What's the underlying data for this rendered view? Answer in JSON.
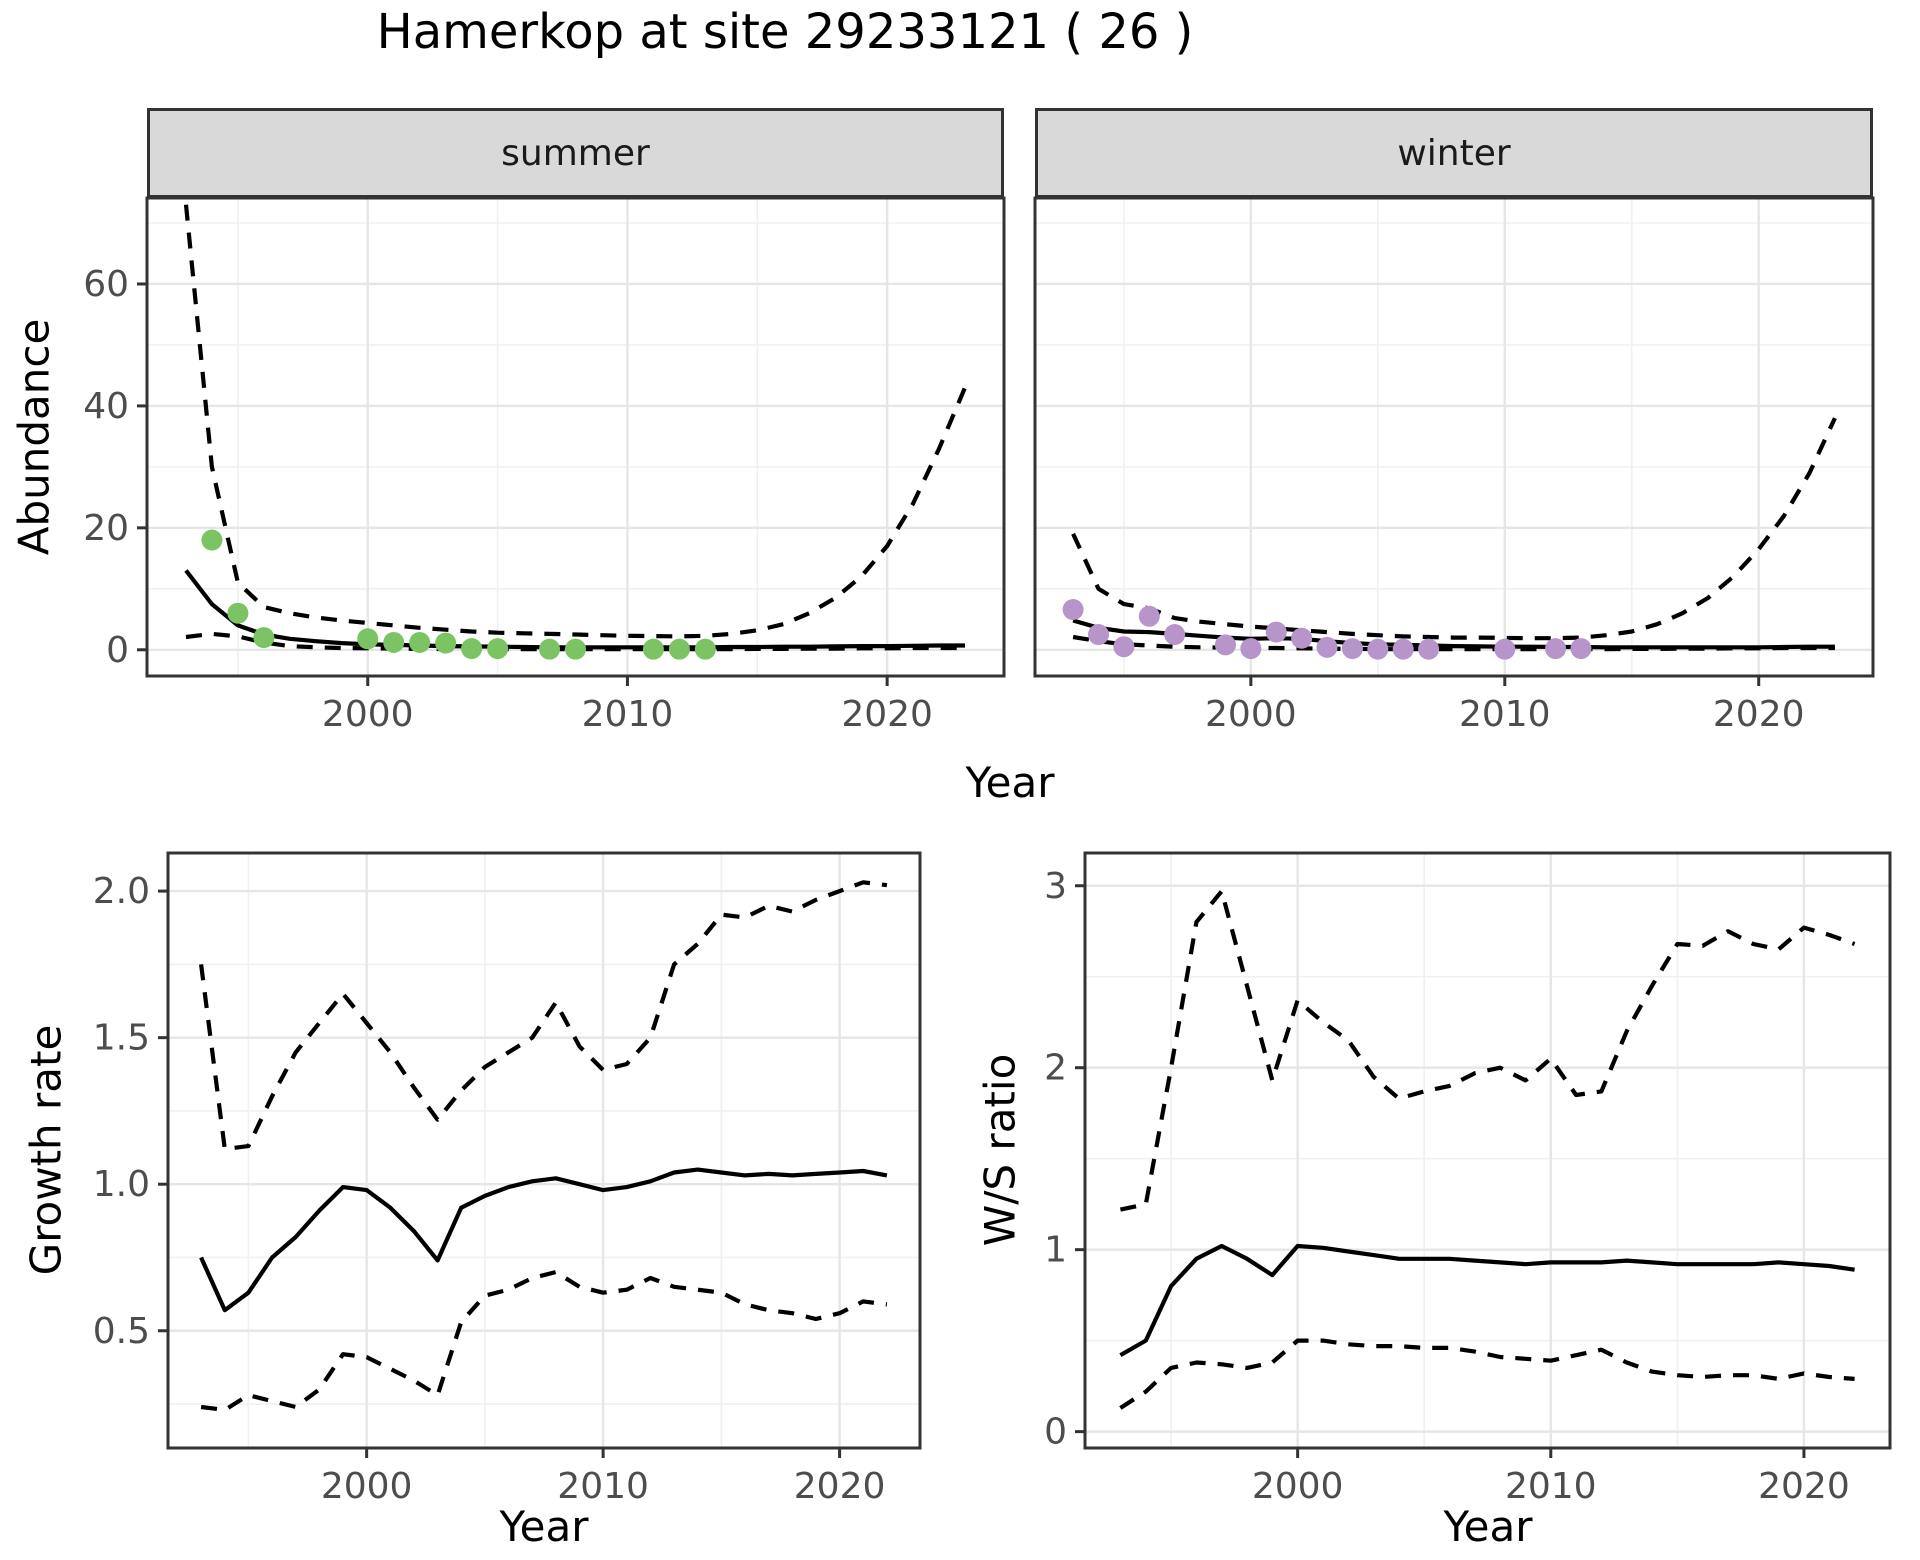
{
  "title": "Hamerkop at site 29233121 ( 26 )",
  "colors": {
    "summer_points": "#7cc364",
    "winter_points": "#b794c9",
    "line": "#000000",
    "grid_major": "#e6e6e6",
    "grid_minor": "#f0f0f0",
    "panel_border": "#333333",
    "strip_fill": "#d9d9d9",
    "tick_label": "#4d4d4d",
    "background": "#ffffff"
  },
  "chart_data": [
    {
      "id": "abundance-summer",
      "type": "line",
      "facet": "summer",
      "ylabel": "Abundance",
      "xlabel": "Year",
      "xlim": [
        1991.5,
        2024.5
      ],
      "ylim": [
        -4.3,
        74.1
      ],
      "xticks": [
        2000,
        2010,
        2020
      ],
      "xtick_labels": [
        "2000",
        "2010",
        "2020"
      ],
      "yticks": [
        0,
        20,
        40,
        60
      ],
      "ytick_labels": [
        "0",
        "20",
        "40",
        "60"
      ],
      "grid": true,
      "legend": "none",
      "series": [
        {
          "name": "median",
          "style": "solid",
          "x": [
            1993,
            1994,
            1995,
            1996,
            1997,
            1998,
            1999,
            2000,
            2001,
            2002,
            2003,
            2004,
            2005,
            2006,
            2007,
            2008,
            2009,
            2010,
            2011,
            2012,
            2013,
            2014,
            2015,
            2016,
            2017,
            2018,
            2019,
            2020,
            2021,
            2022,
            2023
          ],
          "y": [
            13,
            7.5,
            4,
            2.5,
            1.8,
            1.4,
            1.1,
            0.9,
            0.8,
            0.7,
            0.6,
            0.55,
            0.5,
            0.45,
            0.4,
            0.4,
            0.4,
            0.4,
            0.4,
            0.4,
            0.4,
            0.45,
            0.45,
            0.5,
            0.5,
            0.55,
            0.6,
            0.6,
            0.65,
            0.7,
            0.7
          ]
        },
        {
          "name": "lower-ci",
          "style": "dashed",
          "x": [
            1993,
            1994,
            1995,
            1996,
            1997,
            1998,
            1999,
            2000,
            2001,
            2002,
            2003,
            2004,
            2005,
            2006,
            2007,
            2008,
            2009,
            2010,
            2011,
            2012,
            2013,
            2014,
            2015,
            2016,
            2017,
            2018,
            2019,
            2020,
            2021,
            2022,
            2023
          ],
          "y": [
            2.1,
            2.6,
            2.2,
            1.2,
            0.6,
            0.4,
            0.3,
            0.25,
            0.2,
            0.15,
            0.12,
            0.1,
            0.1,
            0.1,
            0.1,
            0.1,
            0.1,
            0.1,
            0.1,
            0.1,
            0.1,
            0.12,
            0.15,
            0.15,
            0.2,
            0.2,
            0.25,
            0.25,
            0.3,
            0.3,
            0.3
          ]
        },
        {
          "name": "upper-ci",
          "style": "dashed",
          "x": [
            1993,
            1994,
            1995,
            1996,
            1997,
            1998,
            1999,
            2000,
            2001,
            2002,
            2003,
            2004,
            2005,
            2006,
            2007,
            2008,
            2009,
            2010,
            2011,
            2012,
            2013,
            2014,
            2015,
            2016,
            2017,
            2018,
            2019,
            2020,
            2021,
            2022,
            2023
          ],
          "y": [
            73,
            30,
            11,
            7,
            6,
            5.3,
            4.8,
            4.4,
            4,
            3.6,
            3.3,
            3,
            2.8,
            2.7,
            2.6,
            2.5,
            2.4,
            2.3,
            2.25,
            2.2,
            2.3,
            2.6,
            3.2,
            4.2,
            6,
            8.5,
            12,
            17,
            24,
            33,
            43
          ]
        }
      ],
      "points": {
        "name": "observed-summer",
        "color": "#7cc364",
        "x": [
          1994,
          1995,
          1996,
          2000,
          2001,
          2002,
          2003,
          2004,
          2005,
          2007,
          2008,
          2011,
          2012,
          2013
        ],
        "y": [
          18,
          6,
          2,
          1.8,
          1.2,
          1.2,
          1.1,
          0.2,
          0.2,
          0.1,
          0.1,
          0.1,
          0.1,
          0.1
        ]
      }
    },
    {
      "id": "abundance-winter",
      "type": "line",
      "facet": "winter",
      "ylabel": "Abundance",
      "xlabel": "Year",
      "xlim": [
        1991.5,
        2024.5
      ],
      "ylim": [
        -4.3,
        74.1
      ],
      "xticks": [
        2000,
        2010,
        2020
      ],
      "xtick_labels": [
        "2000",
        "2010",
        "2020"
      ],
      "yticks": [
        0,
        20,
        40,
        60
      ],
      "ytick_labels": [
        "0",
        "20",
        "40",
        "60"
      ],
      "grid": true,
      "legend": "none",
      "series": [
        {
          "name": "median",
          "style": "solid",
          "x": [
            1993,
            1994,
            1995,
            1996,
            1997,
            1998,
            1999,
            2000,
            2001,
            2002,
            2003,
            2004,
            2005,
            2006,
            2007,
            2008,
            2009,
            2010,
            2011,
            2012,
            2013,
            2014,
            2015,
            2016,
            2017,
            2018,
            2019,
            2020,
            2021,
            2022,
            2023
          ],
          "y": [
            4.8,
            3.6,
            3.0,
            2.9,
            2.6,
            2.3,
            2.0,
            1.8,
            1.9,
            1.8,
            1.4,
            1.1,
            0.9,
            0.8,
            0.7,
            0.6,
            0.55,
            0.5,
            0.5,
            0.45,
            0.45,
            0.4,
            0.4,
            0.4,
            0.4,
            0.4,
            0.4,
            0.4,
            0.45,
            0.5,
            0.5
          ]
        },
        {
          "name": "lower-ci",
          "style": "dashed",
          "x": [
            1993,
            1994,
            1995,
            1996,
            1997,
            1998,
            1999,
            2000,
            2001,
            2002,
            2003,
            2004,
            2005,
            2006,
            2007,
            2008,
            2009,
            2010,
            2011,
            2012,
            2013,
            2014,
            2015,
            2016,
            2017,
            2018,
            2019,
            2020,
            2021,
            2022,
            2023
          ],
          "y": [
            2.1,
            1.4,
            0.9,
            0.7,
            0.5,
            0.4,
            0.35,
            0.3,
            0.3,
            0.25,
            0.2,
            0.15,
            0.12,
            0.1,
            0.1,
            0.1,
            0.1,
            0.1,
            0.1,
            0.1,
            0.1,
            0.12,
            0.15,
            0.15,
            0.2,
            0.2,
            0.25,
            0.25,
            0.3,
            0.3,
            0.3
          ]
        },
        {
          "name": "upper-ci",
          "style": "dashed",
          "x": [
            1993,
            1994,
            1995,
            1996,
            1997,
            1998,
            1999,
            2000,
            2001,
            2002,
            2003,
            2004,
            2005,
            2006,
            2007,
            2008,
            2009,
            2010,
            2011,
            2012,
            2013,
            2014,
            2015,
            2016,
            2017,
            2018,
            2019,
            2020,
            2021,
            2022,
            2023
          ],
          "y": [
            19,
            10,
            7.5,
            6.8,
            5.2,
            4.6,
            4.2,
            3.8,
            3.5,
            3.2,
            2.9,
            2.6,
            2.4,
            2.2,
            2.1,
            2.0,
            2.0,
            1.95,
            1.9,
            1.9,
            2.0,
            2.4,
            3.0,
            4.2,
            6,
            8.5,
            12,
            16.5,
            22,
            29,
            38
          ]
        }
      ],
      "points": {
        "name": "observed-winter",
        "color": "#b794c9",
        "x": [
          1993,
          1994,
          1995,
          1996,
          1997,
          1999,
          2000,
          2001,
          2002,
          2003,
          2004,
          2005,
          2006,
          2007,
          2010,
          2012,
          2013
        ],
        "y": [
          6.6,
          2.5,
          0.5,
          5.5,
          2.5,
          0.8,
          0.2,
          2.9,
          1.9,
          0.4,
          0.2,
          0.1,
          0.1,
          0.1,
          0.1,
          0.2,
          0.2
        ]
      }
    },
    {
      "id": "growth-rate",
      "type": "line",
      "facet": null,
      "ylabel": "Growth rate",
      "xlabel": "Year",
      "xlim": [
        1991.6,
        2023.4
      ],
      "ylim": [
        0.1,
        2.13
      ],
      "xticks": [
        2000,
        2010,
        2020
      ],
      "xtick_labels": [
        "2000",
        "2010",
        "2020"
      ],
      "yticks": [
        0.5,
        1.0,
        1.5,
        2.0
      ],
      "ytick_labels": [
        "0.5",
        "1.0",
        "1.5",
        "2.0"
      ],
      "grid": true,
      "legend": "none",
      "series": [
        {
          "name": "median",
          "style": "solid",
          "x": [
            1993,
            1994,
            1995,
            1996,
            1997,
            1998,
            1999,
            2000,
            2001,
            2002,
            2003,
            2004,
            2005,
            2006,
            2007,
            2008,
            2009,
            2010,
            2011,
            2012,
            2013,
            2014,
            2015,
            2016,
            2017,
            2018,
            2019,
            2020,
            2021,
            2022
          ],
          "y": [
            0.75,
            0.57,
            0.63,
            0.75,
            0.82,
            0.91,
            0.99,
            0.98,
            0.92,
            0.84,
            0.74,
            0.92,
            0.96,
            0.99,
            1.01,
            1.02,
            1.0,
            0.98,
            0.99,
            1.01,
            1.04,
            1.05,
            1.04,
            1.03,
            1.035,
            1.03,
            1.035,
            1.04,
            1.045,
            1.03
          ]
        },
        {
          "name": "lower-ci",
          "style": "dashed",
          "x": [
            1993,
            1994,
            1995,
            1996,
            1997,
            1998,
            1999,
            2000,
            2001,
            2002,
            2003,
            2004,
            2005,
            2006,
            2007,
            2008,
            2009,
            2010,
            2011,
            2012,
            2013,
            2014,
            2015,
            2016,
            2017,
            2018,
            2019,
            2020,
            2021,
            2022
          ],
          "y": [
            0.24,
            0.23,
            0.28,
            0.26,
            0.24,
            0.3,
            0.42,
            0.41,
            0.37,
            0.33,
            0.28,
            0.53,
            0.62,
            0.64,
            0.68,
            0.7,
            0.65,
            0.63,
            0.64,
            0.68,
            0.65,
            0.64,
            0.63,
            0.59,
            0.57,
            0.56,
            0.54,
            0.56,
            0.6,
            0.59
          ]
        },
        {
          "name": "upper-ci",
          "style": "dashed",
          "x": [
            1993,
            1994,
            1995,
            1996,
            1997,
            1998,
            1999,
            2000,
            2001,
            2002,
            2003,
            2004,
            2005,
            2006,
            2007,
            2008,
            2009,
            2010,
            2011,
            2012,
            2013,
            2014,
            2015,
            2016,
            2017,
            2018,
            2019,
            2020,
            2021,
            2022
          ],
          "y": [
            1.75,
            1.12,
            1.13,
            1.3,
            1.45,
            1.55,
            1.65,
            1.55,
            1.45,
            1.33,
            1.22,
            1.32,
            1.4,
            1.45,
            1.5,
            1.62,
            1.47,
            1.39,
            1.41,
            1.5,
            1.75,
            1.82,
            1.92,
            1.91,
            1.95,
            1.93,
            1.97,
            2.0,
            2.03,
            2.02
          ]
        }
      ],
      "points": null
    },
    {
      "id": "ws-ratio",
      "type": "line",
      "facet": null,
      "ylabel": "W/S ratio",
      "xlabel": "Year",
      "xlim": [
        1991.6,
        2023.4
      ],
      "ylim": [
        -0.09,
        3.18
      ],
      "xticks": [
        2000,
        2010,
        2020
      ],
      "xtick_labels": [
        "2000",
        "2010",
        "2020"
      ],
      "yticks": [
        0,
        1,
        2,
        3
      ],
      "ytick_labels": [
        "0",
        "1",
        "2",
        "3"
      ],
      "grid": true,
      "legend": "none",
      "series": [
        {
          "name": "median",
          "style": "solid",
          "x": [
            1993,
            1994,
            1995,
            1996,
            1997,
            1998,
            1999,
            2000,
            2001,
            2002,
            2003,
            2004,
            2005,
            2006,
            2007,
            2008,
            2009,
            2010,
            2011,
            2012,
            2013,
            2014,
            2015,
            2016,
            2017,
            2018,
            2019,
            2020,
            2021,
            2022
          ],
          "y": [
            0.42,
            0.5,
            0.8,
            0.95,
            1.02,
            0.95,
            0.86,
            1.02,
            1.01,
            0.99,
            0.97,
            0.95,
            0.95,
            0.95,
            0.94,
            0.93,
            0.92,
            0.93,
            0.93,
            0.93,
            0.94,
            0.93,
            0.92,
            0.92,
            0.92,
            0.92,
            0.93,
            0.92,
            0.91,
            0.89
          ]
        },
        {
          "name": "lower-ci",
          "style": "dashed",
          "x": [
            1993,
            1994,
            1995,
            1996,
            1997,
            1998,
            1999,
            2000,
            2001,
            2002,
            2003,
            2004,
            2005,
            2006,
            2007,
            2008,
            2009,
            2010,
            2011,
            2012,
            2013,
            2014,
            2015,
            2016,
            2017,
            2018,
            2019,
            2020,
            2021,
            2022
          ],
          "y": [
            0.13,
            0.22,
            0.35,
            0.38,
            0.37,
            0.35,
            0.38,
            0.5,
            0.5,
            0.48,
            0.47,
            0.47,
            0.46,
            0.46,
            0.44,
            0.41,
            0.4,
            0.39,
            0.42,
            0.45,
            0.38,
            0.33,
            0.31,
            0.3,
            0.31,
            0.31,
            0.29,
            0.32,
            0.3,
            0.29
          ]
        },
        {
          "name": "upper-ci",
          "style": "dashed",
          "x": [
            1993,
            1994,
            1995,
            1996,
            1997,
            1998,
            1999,
            2000,
            2001,
            2002,
            2003,
            2004,
            2005,
            2006,
            2007,
            2008,
            2009,
            2010,
            2011,
            2012,
            2013,
            2014,
            2015,
            2016,
            2017,
            2018,
            2019,
            2020,
            2021,
            2022
          ],
          "y": [
            1.22,
            1.25,
            2.0,
            2.8,
            2.97,
            2.45,
            1.93,
            2.37,
            2.25,
            2.15,
            1.95,
            1.83,
            1.87,
            1.9,
            1.97,
            2.0,
            1.93,
            2.05,
            1.85,
            1.87,
            2.2,
            2.45,
            2.68,
            2.67,
            2.75,
            2.68,
            2.65,
            2.77,
            2.73,
            2.68
          ]
        }
      ],
      "points": null
    }
  ]
}
